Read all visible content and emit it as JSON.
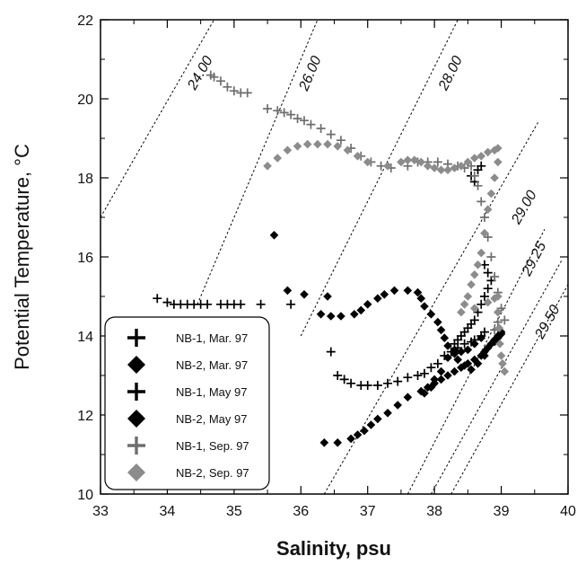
{
  "chart_data": {
    "type": "scatter",
    "xlabel": "Salinity, psu",
    "ylabel_main": "Potential Temperature, ",
    "ylabel_unit": "°C",
    "xlim": [
      33,
      40
    ],
    "ylim": [
      10,
      22
    ],
    "x_ticks": [
      33,
      34,
      35,
      36,
      37,
      38,
      39,
      40
    ],
    "y_ticks": [
      10,
      12,
      14,
      16,
      18,
      20,
      22
    ],
    "grid": false,
    "legend_position": "bottom-left",
    "isopycnals": [
      {
        "label": "24.00",
        "points": [
          [
            33.0,
            17.0
          ],
          [
            34.7,
            22.0
          ]
        ],
        "label_at": [
          34.55,
          20.6
        ]
      },
      {
        "label": "26.00",
        "points": [
          [
            34.45,
            14.8
          ],
          [
            36.25,
            22.0
          ]
        ],
        "label_at": [
          36.2,
          20.6
        ]
      },
      {
        "label": "28.00",
        "points": [
          [
            36.0,
            14.0
          ],
          [
            38.35,
            22.0
          ]
        ],
        "label_at": [
          38.3,
          20.6
        ]
      },
      {
        "label": "29.00",
        "points": [
          [
            36.35,
            10.0
          ],
          [
            39.55,
            19.4
          ]
        ],
        "label_at": [
          39.4,
          17.2
        ]
      },
      {
        "label": "29.25",
        "points": [
          [
            37.6,
            10.0
          ],
          [
            39.65,
            16.7
          ]
        ],
        "label_at": [
          39.55,
          15.9
        ]
      },
      {
        "label": "29.50",
        "points": [
          [
            37.95,
            10.0
          ],
          [
            39.9,
            15.9
          ]
        ],
        "label_at": [
          39.75,
          14.3
        ]
      },
      {
        "label": "",
        "points": [
          [
            38.25,
            10.0
          ],
          [
            40.0,
            15.3
          ]
        ],
        "label_at": null
      }
    ],
    "series": [
      {
        "name": "NB-1, Mar. 97",
        "marker": "plus",
        "color": "#000000",
        "points": [
          [
            36.45,
            13.6
          ],
          [
            36.55,
            13.0
          ],
          [
            36.65,
            12.9
          ],
          [
            36.75,
            12.8
          ],
          [
            36.9,
            12.75
          ],
          [
            37.0,
            12.75
          ],
          [
            37.15,
            12.75
          ],
          [
            37.3,
            12.8
          ],
          [
            37.45,
            12.85
          ],
          [
            37.6,
            12.95
          ],
          [
            37.75,
            13.0
          ],
          [
            37.85,
            13.05
          ],
          [
            37.95,
            13.2
          ],
          [
            38.05,
            13.3
          ],
          [
            38.15,
            13.5
          ],
          [
            38.25,
            13.6
          ],
          [
            38.35,
            13.7
          ],
          [
            38.45,
            13.8
          ],
          [
            38.55,
            13.85
          ],
          [
            38.6,
            13.9
          ],
          [
            38.7,
            14.0
          ],
          [
            38.75,
            14.1
          ]
        ]
      },
      {
        "name": "NB-2, Mar. 97",
        "marker": "diamond",
        "color": "#000000",
        "points": [
          [
            36.35,
            11.3
          ],
          [
            36.55,
            11.3
          ],
          [
            36.75,
            11.4
          ],
          [
            36.85,
            11.5
          ],
          [
            36.95,
            11.6
          ],
          [
            37.05,
            11.75
          ],
          [
            37.15,
            11.9
          ],
          [
            37.3,
            12.05
          ],
          [
            37.45,
            12.25
          ],
          [
            37.6,
            12.45
          ],
          [
            37.8,
            12.6
          ],
          [
            37.9,
            12.7
          ],
          [
            38.0,
            12.8
          ],
          [
            38.1,
            12.9
          ],
          [
            38.2,
            13.0
          ],
          [
            38.3,
            13.1
          ],
          [
            38.4,
            13.2
          ],
          [
            38.5,
            13.3
          ],
          [
            38.6,
            13.4
          ],
          [
            38.7,
            13.5
          ],
          [
            38.75,
            13.6
          ],
          [
            38.8,
            13.7
          ],
          [
            38.85,
            13.8
          ],
          [
            38.9,
            13.9
          ],
          [
            38.95,
            14.0
          ],
          [
            39.0,
            14.1
          ]
        ]
      },
      {
        "name": "NB-1, May 97",
        "marker": "plus",
        "color": "#000000",
        "points": [
          [
            33.85,
            14.95
          ],
          [
            34.0,
            14.85
          ],
          [
            34.1,
            14.8
          ],
          [
            34.2,
            14.8
          ],
          [
            34.3,
            14.8
          ],
          [
            34.4,
            14.8
          ],
          [
            34.5,
            14.8
          ],
          [
            34.6,
            14.8
          ],
          [
            34.8,
            14.8
          ],
          [
            34.9,
            14.8
          ],
          [
            35.0,
            14.8
          ],
          [
            35.1,
            14.8
          ],
          [
            35.4,
            14.8
          ],
          [
            35.85,
            14.8
          ],
          [
            38.65,
            18.2
          ],
          [
            38.7,
            18.3
          ],
          [
            38.6,
            17.9
          ],
          [
            38.55,
            18.05
          ],
          [
            38.75,
            15.8
          ],
          [
            38.8,
            15.6
          ],
          [
            38.85,
            15.4
          ],
          [
            38.8,
            15.2
          ],
          [
            38.75,
            15.0
          ],
          [
            38.7,
            14.8
          ],
          [
            38.65,
            14.6
          ],
          [
            38.6,
            14.4
          ],
          [
            38.55,
            14.3
          ],
          [
            38.5,
            14.2
          ],
          [
            38.45,
            14.1
          ],
          [
            38.4,
            14.0
          ],
          [
            38.35,
            13.9
          ],
          [
            38.3,
            13.8
          ]
        ]
      },
      {
        "name": "NB-2, May 97",
        "marker": "diamond",
        "color": "#000000",
        "points": [
          [
            35.6,
            16.55
          ],
          [
            35.8,
            15.15
          ],
          [
            36.05,
            15.05
          ],
          [
            36.4,
            15.0
          ],
          [
            36.3,
            14.55
          ],
          [
            36.45,
            14.5
          ],
          [
            36.6,
            14.5
          ],
          [
            36.8,
            14.55
          ],
          [
            36.9,
            14.65
          ],
          [
            37.0,
            14.8
          ],
          [
            37.15,
            14.95
          ],
          [
            37.25,
            15.05
          ],
          [
            37.4,
            15.15
          ],
          [
            37.6,
            15.15
          ],
          [
            37.75,
            15.1
          ],
          [
            37.8,
            14.95
          ],
          [
            37.85,
            14.75
          ],
          [
            37.95,
            14.55
          ],
          [
            38.05,
            14.35
          ],
          [
            38.1,
            14.15
          ],
          [
            38.15,
            13.95
          ],
          [
            38.2,
            13.75
          ],
          [
            38.3,
            13.55
          ],
          [
            38.35,
            13.4
          ],
          [
            38.45,
            13.25
          ],
          [
            38.55,
            13.15
          ],
          [
            38.65,
            13.3
          ],
          [
            38.75,
            13.5
          ],
          [
            38.8,
            13.7
          ],
          [
            38.9,
            13.85
          ],
          [
            38.95,
            13.95
          ],
          [
            39.0,
            14.05
          ],
          [
            38.7,
            13.95
          ],
          [
            38.6,
            13.8
          ],
          [
            38.5,
            13.65
          ],
          [
            38.4,
            13.6
          ],
          [
            38.3,
            13.65
          ],
          [
            38.2,
            13.45
          ],
          [
            38.1,
            13.1
          ],
          [
            38.0,
            12.9
          ],
          [
            37.95,
            12.7
          ],
          [
            37.85,
            12.55
          ]
        ]
      },
      {
        "name": "NB-1, Sep. 97",
        "marker": "plus",
        "color": "#6e6e6e",
        "points": [
          [
            34.65,
            20.6
          ],
          [
            34.7,
            20.55
          ],
          [
            34.8,
            20.45
          ],
          [
            34.9,
            20.3
          ],
          [
            35.0,
            20.2
          ],
          [
            35.1,
            20.15
          ],
          [
            35.2,
            20.15
          ],
          [
            35.5,
            19.75
          ],
          [
            35.65,
            19.7
          ],
          [
            35.75,
            19.65
          ],
          [
            35.85,
            19.6
          ],
          [
            35.95,
            19.5
          ],
          [
            36.05,
            19.45
          ],
          [
            36.15,
            19.35
          ],
          [
            36.3,
            19.25
          ],
          [
            36.45,
            19.1
          ],
          [
            36.6,
            18.95
          ],
          [
            36.75,
            18.75
          ],
          [
            36.9,
            18.55
          ],
          [
            37.05,
            18.4
          ],
          [
            37.2,
            18.3
          ],
          [
            37.35,
            18.25
          ],
          [
            37.6,
            18.3
          ],
          [
            37.75,
            18.4
          ],
          [
            37.9,
            18.4
          ],
          [
            38.05,
            18.4
          ],
          [
            38.2,
            18.35
          ],
          [
            38.35,
            18.3
          ],
          [
            38.45,
            18.25
          ],
          [
            38.55,
            18.3
          ],
          [
            38.6,
            18.05
          ],
          [
            38.65,
            17.8
          ],
          [
            38.7,
            17.4
          ],
          [
            38.75,
            17.0
          ],
          [
            38.8,
            16.5
          ],
          [
            38.85,
            16.0
          ],
          [
            38.9,
            15.5
          ],
          [
            38.95,
            15.1
          ],
          [
            39.0,
            14.7
          ],
          [
            38.95,
            14.35
          ],
          [
            38.9,
            14.15
          ],
          [
            39.05,
            14.4
          ]
        ]
      },
      {
        "name": "NB-2, Sep. 97",
        "marker": "diamond",
        "color": "#8c8c8c",
        "points": [
          [
            35.5,
            18.3
          ],
          [
            35.65,
            18.5
          ],
          [
            35.8,
            18.7
          ],
          [
            35.95,
            18.8
          ],
          [
            36.1,
            18.85
          ],
          [
            36.25,
            18.85
          ],
          [
            36.4,
            18.85
          ],
          [
            36.55,
            18.8
          ],
          [
            36.7,
            18.7
          ],
          [
            36.85,
            18.55
          ],
          [
            37.0,
            18.4
          ],
          [
            37.3,
            18.3
          ],
          [
            37.5,
            18.4
          ],
          [
            37.6,
            18.45
          ],
          [
            37.7,
            18.45
          ],
          [
            37.8,
            18.4
          ],
          [
            37.9,
            18.3
          ],
          [
            38.0,
            18.25
          ],
          [
            38.1,
            18.2
          ],
          [
            38.2,
            18.2
          ],
          [
            38.3,
            18.25
          ],
          [
            38.4,
            18.3
          ],
          [
            38.5,
            18.4
          ],
          [
            38.6,
            18.5
          ],
          [
            38.7,
            18.55
          ],
          [
            38.8,
            18.65
          ],
          [
            38.9,
            18.7
          ],
          [
            38.95,
            18.75
          ],
          [
            38.95,
            18.4
          ],
          [
            38.9,
            18.0
          ],
          [
            38.85,
            17.6
          ],
          [
            38.8,
            17.2
          ],
          [
            38.75,
            16.6
          ],
          [
            38.7,
            16.1
          ],
          [
            38.65,
            15.8
          ],
          [
            38.6,
            15.55
          ],
          [
            38.55,
            15.3
          ],
          [
            38.5,
            15.0
          ],
          [
            38.45,
            14.8
          ],
          [
            38.4,
            14.6
          ],
          [
            38.6,
            14.7
          ],
          [
            38.8,
            14.85
          ],
          [
            38.9,
            14.95
          ],
          [
            38.95,
            15.0
          ],
          [
            38.95,
            14.6
          ],
          [
            38.97,
            14.2
          ],
          [
            38.98,
            13.8
          ],
          [
            39.0,
            13.5
          ],
          [
            39.02,
            13.3
          ],
          [
            39.05,
            13.1
          ]
        ]
      }
    ]
  }
}
